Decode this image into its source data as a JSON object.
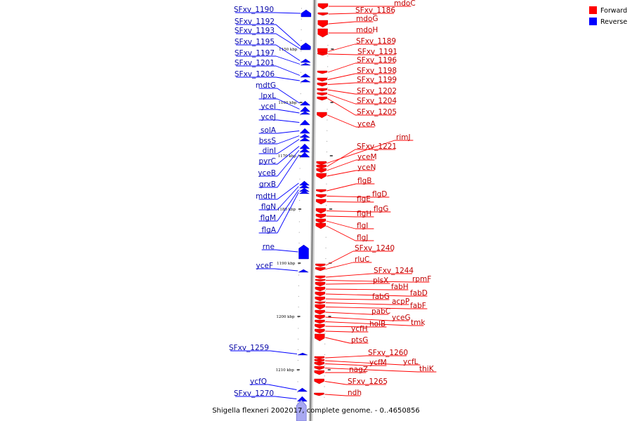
{
  "caption": "Shigella flexneri 2002017, complete genome. - 0..4650856",
  "legend": [
    {
      "label": "Forward",
      "color": "#ff0000"
    },
    {
      "label": "Reverse",
      "color": "#0000ff"
    }
  ],
  "colors": {
    "forward": "#ff0000",
    "reverse": "#0000ff",
    "forward_text": "#c00000",
    "reverse_text": "#0a0aa8",
    "axis": "#888888"
  },
  "scale_ticks": [
    "1150 kbp",
    "1160 kbp",
    "1170 kbp",
    "1180 kbp",
    "1190 kbp",
    "1200 kbp",
    "1210 kbp"
  ],
  "forward_genes": [
    "mdoC",
    "SFxv_1186",
    "mdoG",
    "mdoH",
    "SFxv_1189",
    "SFxv_1191",
    "SFxv_1196",
    "SFxv_1198",
    "SFxv_1199",
    "SFxv_1202",
    "SFxv_1204",
    "SFxv_1205",
    "yceA",
    "rimJ",
    "SFxv_1221",
    "yceM",
    "yceN",
    "flgB",
    "flgD",
    "flgE",
    "flgG",
    "flgH",
    "flgI",
    "flgJ",
    "SFxv_1240",
    "rluC",
    "SFxv_1244",
    "rpmF",
    "plsX",
    "fabH",
    "fabD",
    "fabG",
    "acpP",
    "fabF",
    "pabC",
    "yceG",
    "tmk",
    "holB",
    "ycfH",
    "ptsG",
    "SFxv_1260",
    "ycfL",
    "ycfM",
    "thiK",
    "nagZ",
    "SFxv_1265",
    "ndh"
  ],
  "reverse_genes": [
    "SFxv_1190",
    "SFxv_1192",
    "SFxv_1193",
    "SFxv_1195",
    "SFxv_1197",
    "SFxv_1201",
    "SFxv_1206",
    "mdtG",
    "lpxL",
    "yceI",
    "yceJ",
    "solA",
    "bssS",
    "dinI",
    "pyrC",
    "yceB",
    "grxB",
    "mdtH",
    "flgN",
    "flgM",
    "flgA",
    "rne",
    "yceF",
    "SFxv_1259",
    "ycfQ",
    "SFxv_1270"
  ]
}
